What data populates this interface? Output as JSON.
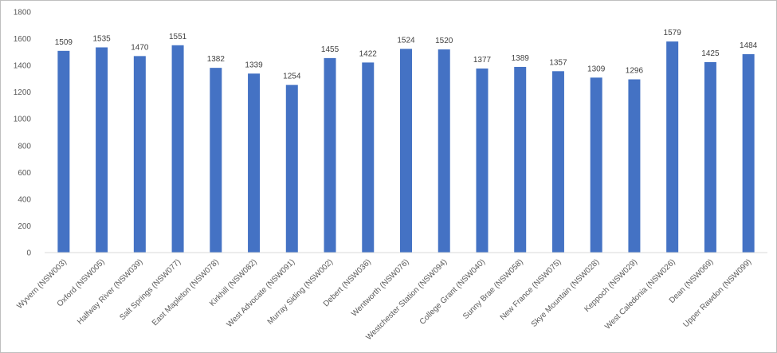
{
  "chart_data": {
    "type": "bar",
    "categories": [
      "Wyvern (NSW003)",
      "Oxford (NSW005)",
      "Halfway River (NSW039)",
      "Salt Springs (NSW077)",
      "East Mapleton (NSW078)",
      "Kirkhill (NSW082)",
      "West Advocate (NSW091)",
      "Murray Siding (NSW002)",
      "Debert (NSW036)",
      "Wentworth (NSW076)",
      "Westchester Station (NSW094)",
      "College Grant (NSW040)",
      "Sunny Brae (NSW058)",
      "New France (NSW075)",
      "Skye Mountain (NSW028)",
      "Keppoch (NSW029)",
      "West Caledonia (NSW026)",
      "Dean (NSW069)",
      "Upper Rawdon (NSW099)"
    ],
    "values": [
      1509,
      1535,
      1470,
      1551,
      1382,
      1339,
      1254,
      1455,
      1422,
      1524,
      1520,
      1377,
      1389,
      1357,
      1309,
      1296,
      1579,
      1425,
      1484
    ],
    "data_labels": [
      "1509",
      "1535",
      "1470",
      "1551",
      "1382",
      "1339",
      "1254",
      "1455",
      "1422",
      "1524",
      "1520",
      "1377",
      "1389",
      "1357",
      "1309",
      "1296",
      "1579",
      "1425",
      "1484"
    ],
    "yticks": [
      "0",
      "200",
      "400",
      "600",
      "800",
      "1000",
      "1200",
      "1400",
      "1600",
      "1800"
    ],
    "ylim": [
      0,
      1800
    ],
    "title": "",
    "xlabel": "",
    "ylabel": "",
    "grid": false,
    "legend": "none",
    "bar_color": "#4472c4",
    "axis_color": "#d9d9d9"
  }
}
